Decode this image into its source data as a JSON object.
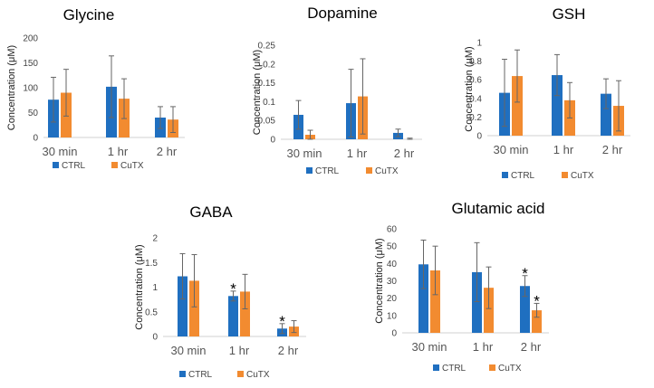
{
  "colors": {
    "ctrl": "#1F6FC0",
    "cutx": "#F28B30",
    "error": "#666666",
    "axis": "#d0d0d0"
  },
  "chart_data": [
    {
      "type": "bar",
      "title": "Glycine",
      "ylabel": "Concentration (μM)",
      "categories": [
        "30 min",
        "1 hr",
        "2 hr"
      ],
      "ylim": [
        0,
        200
      ],
      "yticks": [
        0,
        50,
        100,
        150,
        200
      ],
      "tick_labels": [
        "0",
        "50",
        "100",
        "150",
        "200"
      ],
      "series": [
        {
          "name": "CTRL",
          "values": [
            76,
            102,
            40
          ],
          "errors": [
            45,
            62,
            22
          ],
          "stars": [
            "",
            "",
            ""
          ]
        },
        {
          "name": "CuTX",
          "values": [
            90,
            78,
            36
          ],
          "errors": [
            47,
            40,
            26
          ],
          "stars": [
            "",
            "",
            ""
          ]
        }
      ]
    },
    {
      "type": "bar",
      "title": "Dopamine",
      "ylabel": "Concentration (μM)",
      "categories": [
        "30 min",
        "1 hr",
        "2 hr"
      ],
      "ylim": [
        0,
        0.25
      ],
      "yticks": [
        0,
        0.05,
        0.1,
        0.15,
        0.2,
        0.25
      ],
      "tick_labels": [
        "0",
        "0.05",
        "0.1",
        "0.15",
        "0.2",
        "0.25"
      ],
      "series": [
        {
          "name": "CTRL",
          "values": [
            0.065,
            0.096,
            0.017
          ],
          "errors": [
            0.038,
            0.09,
            0.01
          ],
          "stars": [
            "",
            "",
            ""
          ]
        },
        {
          "name": "CuTX",
          "values": [
            0.012,
            0.114,
            0.0
          ],
          "errors": [
            0.012,
            0.1,
            0.003
          ],
          "stars": [
            "",
            "",
            ""
          ]
        }
      ]
    },
    {
      "type": "bar",
      "title": "GSH",
      "ylabel": "Concentration (μM)",
      "categories": [
        "30 min",
        "1 hr",
        "2 hr"
      ],
      "ylim": [
        0,
        1
      ],
      "yticks": [
        0,
        0.2,
        0.4,
        0.6,
        0.8,
        1
      ],
      "tick_labels": [
        "0",
        "0.2",
        "0.4",
        "0.6",
        "0.8",
        "1"
      ],
      "series": [
        {
          "name": "CTRL",
          "values": [
            0.46,
            0.65,
            0.45
          ],
          "errors": [
            0.36,
            0.22,
            0.16
          ],
          "stars": [
            "",
            "",
            ""
          ]
        },
        {
          "name": "CuTX",
          "values": [
            0.64,
            0.38,
            0.32
          ],
          "errors": [
            0.28,
            0.19,
            0.27
          ],
          "stars": [
            "",
            "",
            ""
          ]
        }
      ]
    },
    {
      "type": "bar",
      "title": "GABA",
      "ylabel": "Concentration (μM)",
      "categories": [
        "30 min",
        "1 hr",
        "2 hr"
      ],
      "ylim": [
        0,
        2
      ],
      "yticks": [
        0,
        0.5,
        1,
        1.5,
        2
      ],
      "tick_labels": [
        "0",
        "0.5",
        "1",
        "1.5",
        "2"
      ],
      "series": [
        {
          "name": "CTRL",
          "values": [
            1.22,
            0.82,
            0.16
          ],
          "errors": [
            0.46,
            0.1,
            0.1
          ],
          "stars": [
            "",
            "*",
            "*"
          ]
        },
        {
          "name": "CuTX",
          "values": [
            1.13,
            0.91,
            0.2
          ],
          "errors": [
            0.53,
            0.35,
            0.12
          ],
          "stars": [
            "",
            "",
            ""
          ]
        }
      ]
    },
    {
      "type": "bar",
      "title": "Glutamic acid",
      "ylabel": "Concentration (μM)",
      "categories": [
        "30 min",
        "1 hr",
        "2 hr"
      ],
      "ylim": [
        0,
        60
      ],
      "yticks": [
        0,
        10,
        20,
        30,
        40,
        50,
        60
      ],
      "tick_labels": [
        "0",
        "10",
        "20",
        "30",
        "40",
        "50",
        "60"
      ],
      "series": [
        {
          "name": "CTRL",
          "values": [
            39.5,
            35,
            27
          ],
          "errors": [
            14,
            17,
            6
          ],
          "stars": [
            "",
            "",
            "*"
          ]
        },
        {
          "name": "CuTX",
          "values": [
            36,
            26,
            13
          ],
          "errors": [
            14,
            12,
            4
          ],
          "stars": [
            "",
            "",
            "*"
          ]
        }
      ]
    }
  ]
}
